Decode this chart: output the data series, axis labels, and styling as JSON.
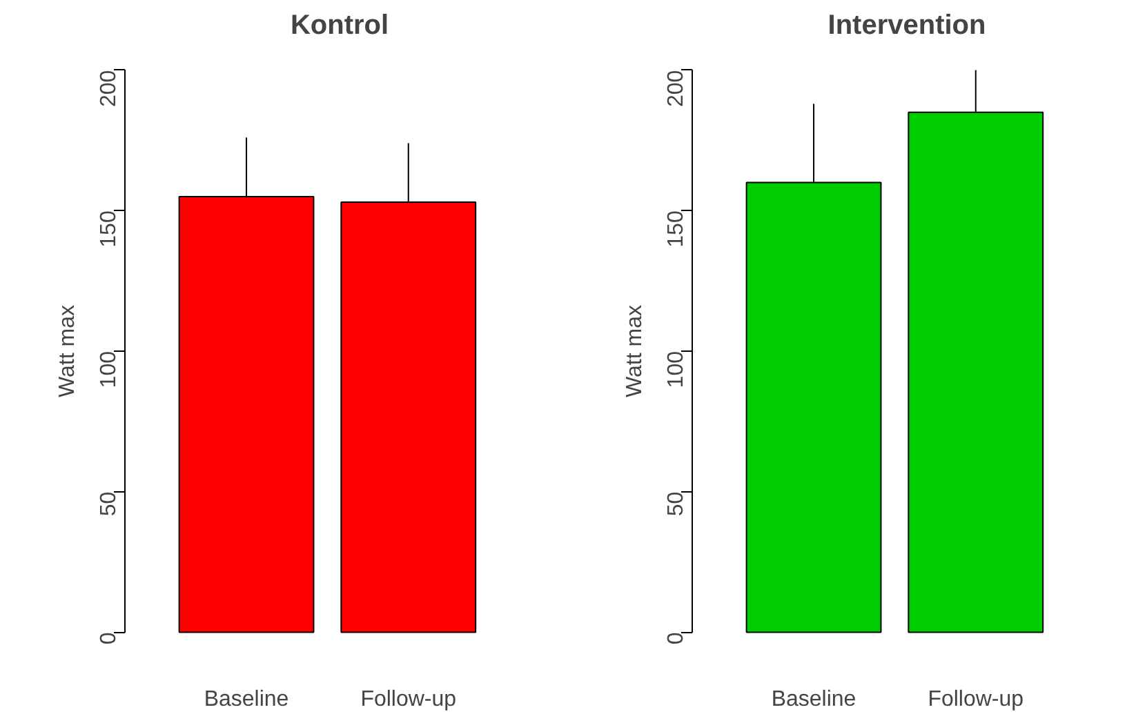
{
  "chart_data": [
    {
      "type": "bar",
      "title": "Kontrol",
      "ylabel": "Watt max",
      "categories": [
        "Baseline",
        "Follow-up"
      ],
      "values": [
        155,
        153
      ],
      "errors": [
        [
          155,
          176
        ],
        [
          153,
          174
        ]
      ],
      "color": "#ff0000",
      "ylim": [
        0,
        200
      ],
      "yticks": [
        0,
        50,
        100,
        150,
        200
      ],
      "grid": false
    },
    {
      "type": "bar",
      "title": "Intervention",
      "ylabel": "Watt max",
      "categories": [
        "Baseline",
        "Follow-up"
      ],
      "values": [
        160,
        185
      ],
      "errors": [
        [
          160,
          188
        ],
        [
          185,
          200
        ]
      ],
      "color": "#00cd00",
      "ylim": [
        0,
        200
      ],
      "yticks": [
        0,
        50,
        100,
        150,
        200
      ],
      "grid": false
    }
  ]
}
